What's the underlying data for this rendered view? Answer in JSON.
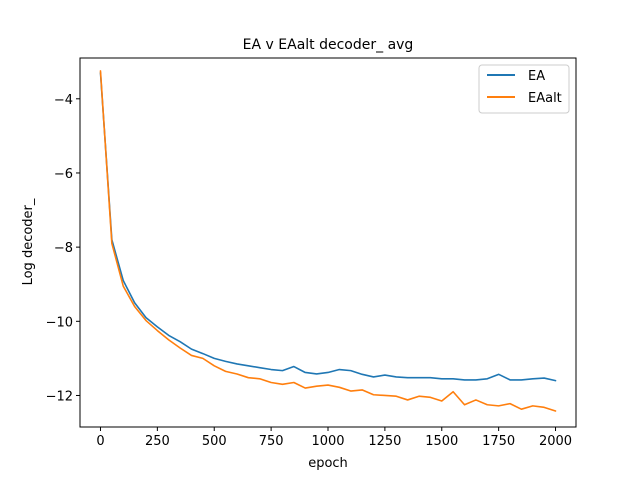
{
  "chart_data": {
    "type": "line",
    "title": "EA v EAalt decoder_ avg",
    "xlabel": "epoch",
    "ylabel": "Log decoder_",
    "xlim": [
      -90,
      2090
    ],
    "ylim": [
      -12.85,
      -2.9
    ],
    "xticks": [
      0,
      250,
      500,
      750,
      1000,
      1250,
      1500,
      1750,
      2000
    ],
    "yticks": [
      -4,
      -6,
      -8,
      -10,
      -12
    ],
    "grid": false,
    "legend_position": "top-right",
    "x": [
      0,
      50,
      100,
      150,
      200,
      250,
      300,
      350,
      400,
      450,
      500,
      550,
      600,
      650,
      700,
      750,
      800,
      850,
      900,
      950,
      1000,
      1050,
      1100,
      1150,
      1200,
      1250,
      1300,
      1350,
      1400,
      1450,
      1500,
      1550,
      1600,
      1650,
      1700,
      1750,
      1800,
      1850,
      1900,
      1950,
      2000
    ],
    "series": [
      {
        "name": "EA",
        "color": "#1f77b4",
        "values": [
          -3.3,
          -7.8,
          -8.9,
          -9.5,
          -9.9,
          -10.15,
          -10.38,
          -10.55,
          -10.75,
          -10.87,
          -11.0,
          -11.08,
          -11.15,
          -11.2,
          -11.25,
          -11.3,
          -11.33,
          -11.22,
          -11.38,
          -11.42,
          -11.38,
          -11.3,
          -11.33,
          -11.43,
          -11.5,
          -11.45,
          -11.5,
          -11.52,
          -11.52,
          -11.52,
          -11.55,
          -11.55,
          -11.58,
          -11.58,
          -11.55,
          -11.43,
          -11.58,
          -11.58,
          -11.55,
          -11.53,
          -11.6
        ]
      },
      {
        "name": "EAalt",
        "color": "#ff7f0e",
        "values": [
          -3.25,
          -7.9,
          -9.05,
          -9.6,
          -9.98,
          -10.25,
          -10.5,
          -10.72,
          -10.92,
          -11.0,
          -11.2,
          -11.35,
          -11.42,
          -11.52,
          -11.55,
          -11.65,
          -11.7,
          -11.65,
          -11.8,
          -11.75,
          -11.72,
          -11.78,
          -11.88,
          -11.85,
          -11.98,
          -12.0,
          -12.02,
          -12.12,
          -12.02,
          -12.05,
          -12.15,
          -11.9,
          -12.25,
          -12.12,
          -12.25,
          -12.28,
          -12.22,
          -12.37,
          -12.28,
          -12.32,
          -12.42
        ]
      }
    ]
  }
}
